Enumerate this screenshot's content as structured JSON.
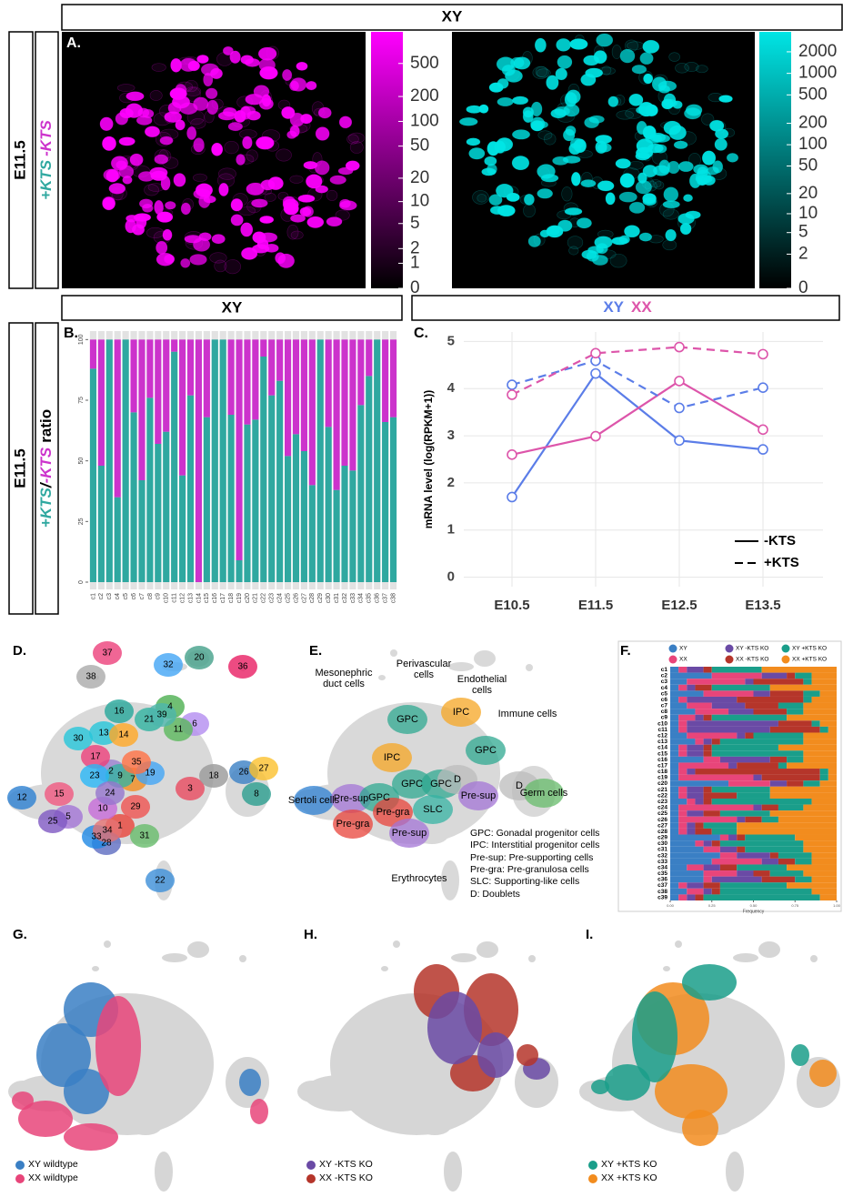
{
  "headers": {
    "top": "XY",
    "row2_left": "XY",
    "row2_right": [
      {
        "text": "XY",
        "color": "#5b7de8"
      },
      {
        "text": "XX",
        "color": "#dd55aa"
      }
    ]
  },
  "side_labels": {
    "a_stage": "E11.5",
    "a_ratio": [
      {
        "text": "+KTS",
        "color": "#2fa8a0"
      },
      {
        "text": "-KTS",
        "color": "#cc33cc"
      }
    ],
    "b_stage": "E11.5",
    "b_ratio": [
      {
        "text": "+KTS",
        "color": "#2fa8a0"
      },
      {
        "text": "/",
        "color": "#000000"
      },
      {
        "text": "-KTS",
        "color": "#cc33cc"
      },
      {
        "text": "ratio",
        "color": "#000000"
      }
    ]
  },
  "panel_a": {
    "label": "A.",
    "scale": "log1p",
    "colorbars": [
      {
        "color": "#ff00ff",
        "lim": [
          0,
          1200
        ],
        "ticks": [
          0,
          1,
          2,
          5,
          10,
          20,
          50,
          100,
          200,
          500
        ]
      },
      {
        "color": "#00e5e5",
        "lim": [
          0,
          3800
        ],
        "ticks": [
          0,
          2,
          5,
          10,
          20,
          50,
          100,
          200,
          500,
          1000,
          2000
        ]
      }
    ]
  },
  "chart_data": [
    {
      "type": "bar",
      "stacked": true,
      "label": "B.",
      "categories": [
        "c1",
        "c2",
        "c3",
        "c4",
        "c5",
        "c6",
        "c7",
        "c8",
        "c9",
        "c10",
        "c11",
        "c12",
        "c13",
        "c14",
        "c15",
        "c16",
        "c17",
        "c18",
        "c19",
        "c20",
        "c21",
        "c22",
        "c23",
        "c24",
        "c25",
        "c26",
        "c27",
        "c28",
        "c29",
        "c30",
        "c31",
        "c32",
        "c33",
        "c34",
        "c35",
        "c36",
        "c37",
        "c38"
      ],
      "series": [
        {
          "color": "#2fa8a0",
          "values": [
            88,
            48,
            100,
            35,
            100,
            70,
            42,
            76,
            57,
            62,
            95,
            44,
            77,
            0,
            68,
            100,
            100,
            69,
            9,
            65,
            67,
            93,
            77,
            83,
            52,
            61,
            54,
            40,
            100,
            64,
            38,
            48,
            46,
            73,
            85,
            100,
            66,
            68
          ]
        },
        {
          "color": "#cc33cc",
          "values": [
            12,
            52,
            0,
            65,
            0,
            30,
            58,
            24,
            43,
            38,
            5,
            56,
            23,
            100,
            32,
            0,
            0,
            31,
            91,
            35,
            33,
            7,
            23,
            17,
            48,
            39,
            46,
            60,
            0,
            36,
            62,
            52,
            54,
            27,
            15,
            0,
            34,
            32
          ]
        }
      ],
      "ylim": [
        -3,
        105
      ],
      "yticks": [
        0,
        25,
        50,
        75,
        100
      ]
    },
    {
      "type": "line",
      "label": "C.",
      "categories": [
        "E10.5",
        "E11.5",
        "E12.5",
        "E13.5"
      ],
      "series": [
        {
          "color": "#5b7de8",
          "dash": false,
          "values": [
            1.7,
            4.32,
            2.9,
            2.71
          ]
        },
        {
          "color": "#dd55aa",
          "dash": false,
          "values": [
            2.6,
            2.99,
            4.16,
            3.13
          ]
        },
        {
          "color": "#5b7de8",
          "dash": true,
          "values": [
            4.08,
            4.59,
            3.59,
            4.02
          ]
        },
        {
          "color": "#dd55aa",
          "dash": true,
          "values": [
            3.87,
            4.75,
            4.88,
            4.73
          ]
        }
      ],
      "ylabel": "mRNA level (log(RPKM+1))",
      "ylim": [
        -0.2,
        5.2
      ],
      "yticks": [
        0,
        1,
        2,
        3,
        4,
        5
      ],
      "grid": true,
      "legend": [
        {
          "label": "-KTS",
          "dash": false
        },
        {
          "label": "+KTS",
          "dash": true
        }
      ],
      "legend_position": "bottom-right"
    },
    {
      "type": "hbar",
      "stacked": true,
      "label": "F.",
      "categories": [
        "c1",
        "c2",
        "c3",
        "c4",
        "c5",
        "c6",
        "c7",
        "c8",
        "c9",
        "c10",
        "c11",
        "c12",
        "c13",
        "c14",
        "c15",
        "c16",
        "c17",
        "c18",
        "c19",
        "c20",
        "c21",
        "c22",
        "c23",
        "c24",
        "c25",
        "c26",
        "c27",
        "c28",
        "c29",
        "c30",
        "c31",
        "c32",
        "c33",
        "c34",
        "c35",
        "c36",
        "c37",
        "c38",
        "c39"
      ],
      "series": [
        {
          "name": "XY",
          "color": "#3a7fc4",
          "values": [
            0.05,
            0.25,
            0.1,
            0.05,
            0.2,
            0.05,
            0.1,
            0.15,
            0.05,
            0.05,
            0.05,
            0.1,
            0.15,
            0.05,
            0.05,
            0.2,
            0.05,
            0.05,
            0.05,
            0.35,
            0.05,
            0.05,
            0.1,
            0.05,
            0.05,
            0.05,
            0.05,
            0.05,
            0.3,
            0.15,
            0.2,
            0.3,
            0.25,
            0.1,
            0.2,
            0.2,
            0.05,
            0.1,
            0.05
          ]
        },
        {
          "name": "XX",
          "color": "#e8457a",
          "values": [
            0.05,
            0.3,
            0.35,
            0.05,
            0.3,
            0.05,
            0.15,
            0.2,
            0.1,
            0.05,
            0.05,
            0.3,
            0.05,
            0.05,
            0.05,
            0.1,
            0.3,
            0.05,
            0.45,
            0.25,
            0.05,
            0.05,
            0.05,
            0.45,
            0.05,
            0.35,
            0.05,
            0.05,
            0.05,
            0.05,
            0.1,
            0.1,
            0.3,
            0.1,
            0.2,
            0.05,
            0.05,
            0.1,
            0.05
          ]
        },
        {
          "name": "XY -KTS KO",
          "color": "#6a4aa5",
          "values": [
            0.1,
            0.15,
            0.05,
            0.05,
            0.1,
            0.3,
            0.2,
            0.15,
            0.05,
            0.55,
            0.5,
            0.05,
            0.05,
            0.1,
            0.1,
            0.3,
            0.05,
            0.05,
            0.05,
            0.1,
            0.1,
            0.1,
            0.05,
            0.05,
            0.1,
            0.05,
            0.05,
            0.05,
            0.05,
            0.05,
            0.1,
            0.2,
            0.1,
            0.1,
            0.1,
            0.3,
            0.1,
            0.05,
            0.05
          ]
        },
        {
          "name": "XX -KTS KO",
          "color": "#b5352a",
          "values": [
            0.05,
            0.05,
            0.3,
            0.1,
            0.2,
            0.4,
            0.2,
            0.2,
            0.05,
            0.2,
            0.3,
            0.05,
            0.05,
            0.05,
            0.05,
            0.1,
            0.25,
            0.75,
            0.35,
            0.1,
            0.05,
            0.2,
            0.05,
            0.1,
            0.1,
            0.1,
            0.05,
            0.1,
            0.05,
            0.05,
            0.05,
            0.05,
            0.1,
            0.1,
            0.1,
            0.2,
            0.1,
            0.05,
            0.05
          ]
        },
        {
          "name": "XY +KTS KO",
          "color": "#1a9e8a",
          "values": [
            0.3,
            0.1,
            0.05,
            0.35,
            0.1,
            0.05,
            0.15,
            0.1,
            0.45,
            0.05,
            0.05,
            0.3,
            0.5,
            0.4,
            0.55,
            0.1,
            0.05,
            0.05,
            0.05,
            0.1,
            0.35,
            0.2,
            0.6,
            0.15,
            0.3,
            0.1,
            0.2,
            0.15,
            0.3,
            0.5,
            0.35,
            0.2,
            0.1,
            0.3,
            0.2,
            0.1,
            0.4,
            0.55,
            0.7
          ]
        },
        {
          "name": "XX +KTS KO",
          "color": "#f28c1e",
          "values": [
            0.45,
            0.15,
            0.15,
            0.4,
            0.1,
            0.15,
            0.2,
            0.2,
            0.3,
            0.1,
            0.05,
            0.2,
            0.2,
            0.35,
            0.2,
            0.2,
            0.3,
            0.05,
            0.05,
            0.1,
            0.4,
            0.4,
            0.15,
            0.2,
            0.4,
            0.35,
            0.6,
            0.6,
            0.25,
            0.2,
            0.2,
            0.15,
            0.15,
            0.3,
            0.2,
            0.15,
            0.3,
            0.15,
            0.1
          ]
        }
      ],
      "xlim": [
        0,
        1
      ],
      "xticks": [
        {
          "value": 0,
          "label": "0.00"
        },
        {
          "value": 0.25,
          "label": "0.25"
        },
        {
          "value": 0.5,
          "label": "0.50"
        },
        {
          "value": 0.75,
          "label": "0.75"
        },
        {
          "value": 1,
          "label": "1.00"
        }
      ],
      "xlabel": "Frequency",
      "legend_position": "top"
    }
  ],
  "panel_d": {
    "label": "D.",
    "clusters": [
      "1",
      "2",
      "3",
      "4",
      "5",
      "6",
      "7",
      "8",
      "9",
      "10",
      "11",
      "12",
      "13",
      "14",
      "15",
      "16",
      "17",
      "18",
      "19",
      "20",
      "21",
      "22",
      "23",
      "24",
      "25",
      "26",
      "27",
      "28",
      "29",
      "30",
      "31",
      "32",
      "33",
      "34",
      "35",
      "36",
      "37",
      "38",
      "39"
    ]
  },
  "panel_e": {
    "label": "E.",
    "cell_labels": [
      "Mesonephric duct cells",
      "Perivascular cells",
      "Endothelial cells",
      "Immune cells",
      "GPC",
      "IPC",
      "GPC",
      "IPC",
      "GPC",
      "GPC",
      "D",
      "Sertoli cells",
      "Pre-sup",
      "GPC",
      "Pre-gra",
      "Pre-sup",
      "SLC",
      "D",
      "Germ cells",
      "Pre-gra",
      "Pre-sup",
      "Erythrocytes"
    ],
    "legend": [
      "GPC: Gonadal progenitor cells",
      "IPC: Interstitial progenitor cells",
      "Pre-sup: Pre-supporting cells",
      "Pre-gra: Pre-granulosa cells",
      "SLC: Supporting-like cells",
      "D: Doublets"
    ]
  },
  "panels_ghi": [
    {
      "label": "G.",
      "legend": [
        {
          "text": "XY wildtype",
          "color": "#3a7fc4"
        },
        {
          "text": "XX wildtype",
          "color": "#e8457a"
        }
      ]
    },
    {
      "label": "H.",
      "legend": [
        {
          "text": "XY -KTS KO",
          "color": "#6a4aa5"
        },
        {
          "text": "XX -KTS KO",
          "color": "#b5352a"
        }
      ]
    },
    {
      "label": "I.",
      "legend": [
        {
          "text": "XY +KTS KO",
          "color": "#1a9e8a"
        },
        {
          "text": "XX +KTS KO",
          "color": "#f28c1e"
        }
      ]
    }
  ]
}
